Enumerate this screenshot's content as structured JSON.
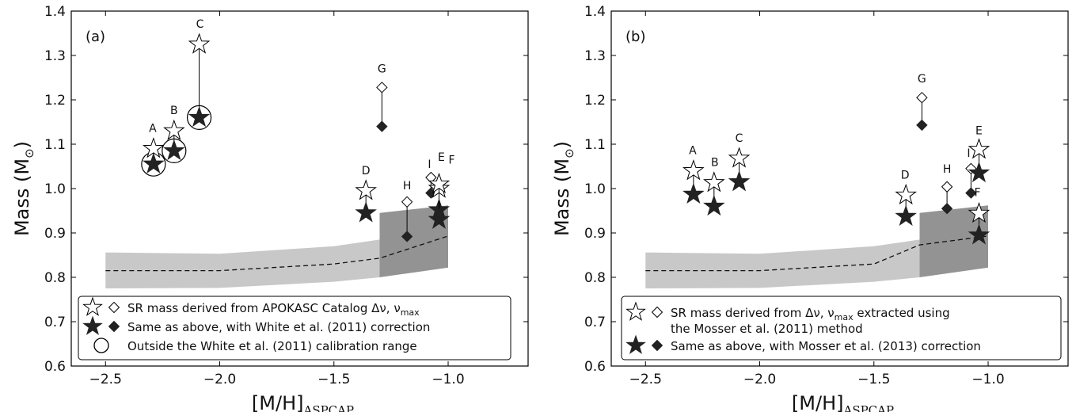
{
  "chart_data": [
    {
      "type": "scatter",
      "panel_label": "(a)",
      "xlabel": "[M/H]",
      "xlabel_sub": "ASPCAP",
      "ylabel": "Mass (M",
      "ylabel_sym": "⊙",
      "ylabel_end": ")",
      "xlim": [
        -2.65,
        -0.65
      ],
      "ylim": [
        0.6,
        1.4
      ],
      "xticks": [
        -2.5,
        -2.0,
        -1.5,
        -1.0
      ],
      "xtick_labels": [
        "−2.5",
        "−2.0",
        "−1.5",
        "−1.0"
      ],
      "yticks": [
        0.6,
        0.7,
        0.8,
        0.9,
        1.0,
        1.1,
        1.2,
        1.3,
        1.4
      ],
      "ytick_labels": [
        "0.6",
        "0.7",
        "0.8",
        "0.9",
        "1.0",
        "1.1",
        "1.2",
        "1.3",
        "1.4"
      ],
      "band_light": {
        "x": [
          -2.5,
          -2.0,
          -1.5,
          -1.3
        ],
        "upper": [
          0.856,
          0.853,
          0.87,
          0.885
        ],
        "lower": [
          0.775,
          0.776,
          0.79,
          0.8
        ]
      },
      "band_dark": {
        "x": [
          -1.3,
          -1.0
        ],
        "upper": [
          0.945,
          0.962
        ],
        "lower": [
          0.8,
          0.822
        ]
      },
      "median_line": {
        "x": [
          -2.5,
          -2.0,
          -1.5,
          -1.3,
          -1.0
        ],
        "y": [
          0.815,
          0.815,
          0.83,
          0.843,
          0.893
        ]
      },
      "stars": [
        {
          "id": "A",
          "metallicity": -2.29,
          "mass_open": 1.09,
          "mass_filled": 1.055,
          "circled": true
        },
        {
          "id": "B",
          "metallicity": -2.2,
          "mass_open": 1.13,
          "mass_filled": 1.085,
          "circled": true
        },
        {
          "id": "C",
          "metallicity": -2.09,
          "mass_open": 1.325,
          "mass_filled": 1.16,
          "circled": true
        },
        {
          "id": "D",
          "metallicity": -1.36,
          "mass_open": 0.995,
          "mass_filled": 0.945,
          "circled": false
        },
        {
          "id": "E",
          "metallicity": -1.04,
          "mass_open": 1.0,
          "mass_filled": 0.952,
          "circled": false
        },
        {
          "id": "F",
          "metallicity": -1.04,
          "mass_open": 1.01,
          "mass_filled": 0.93,
          "circled": false
        }
      ],
      "diamonds": [
        {
          "id": "G",
          "metallicity": -1.29,
          "mass_open": 1.228,
          "mass_filled": 1.14
        },
        {
          "id": "H",
          "metallicity": -1.18,
          "mass_open": 0.97,
          "mass_filled": 0.892
        },
        {
          "id": "I",
          "metallicity": -1.075,
          "mass_open": 1.025,
          "mass_filled": 0.99
        }
      ],
      "legend": [
        {
          "symbols": [
            "open-star",
            "open-diamond"
          ],
          "text": "SR mass derived from APOKASC Catalog Δν, ν",
          "sub": "max"
        },
        {
          "symbols": [
            "filled-star",
            "filled-diamond"
          ],
          "text": "Same as above, with White et al. (2011) correction"
        },
        {
          "symbols": [
            "open-circle"
          ],
          "text": "Outside the White et al. (2011) calibration range"
        }
      ],
      "colors": {
        "band_light": "#c8c8c8",
        "band_dark": "#939393",
        "marker": "#222222"
      }
    },
    {
      "type": "scatter",
      "panel_label": "(b)",
      "xlabel": "[M/H]",
      "xlabel_sub": "ASPCAP",
      "ylabel": "Mass (M",
      "ylabel_sym": "⊙",
      "ylabel_end": ")",
      "xlim": [
        -2.65,
        -0.65
      ],
      "ylim": [
        0.6,
        1.4
      ],
      "xticks": [
        -2.5,
        -2.0,
        -1.5,
        -1.0
      ],
      "xtick_labels": [
        "−2.5",
        "−2.0",
        "−1.5",
        "−1.0"
      ],
      "yticks": [
        0.6,
        0.7,
        0.8,
        0.9,
        1.0,
        1.1,
        1.2,
        1.3,
        1.4
      ],
      "ytick_labels": [
        "0.6",
        "0.7",
        "0.8",
        "0.9",
        "1.0",
        "1.1",
        "1.2",
        "1.3",
        "1.4"
      ],
      "band_light": {
        "x": [
          -2.5,
          -2.0,
          -1.5,
          -1.3
        ],
        "upper": [
          0.856,
          0.853,
          0.87,
          0.885
        ],
        "lower": [
          0.775,
          0.776,
          0.79,
          0.8
        ]
      },
      "band_dark": {
        "x": [
          -1.3,
          -1.0
        ],
        "upper": [
          0.945,
          0.962
        ],
        "lower": [
          0.8,
          0.822
        ]
      },
      "median_line": {
        "x": [
          -2.5,
          -2.0,
          -1.5,
          -1.3,
          -1.0
        ],
        "y": [
          0.815,
          0.815,
          0.83,
          0.873,
          0.893
        ]
      },
      "stars": [
        {
          "id": "A",
          "metallicity": -2.29,
          "mass_open": 1.04,
          "mass_filled": 0.987
        },
        {
          "id": "B",
          "metallicity": -2.2,
          "mass_open": 1.013,
          "mass_filled": 0.96
        },
        {
          "id": "C",
          "metallicity": -2.09,
          "mass_open": 1.068,
          "mass_filled": 1.015
        },
        {
          "id": "D",
          "metallicity": -1.36,
          "mass_open": 0.985,
          "mass_filled": 0.937
        },
        {
          "id": "E",
          "metallicity": -1.04,
          "mass_open": 1.088,
          "mass_filled": 1.035
        },
        {
          "id": "F",
          "metallicity": -1.04,
          "mass_open": 0.944,
          "mass_filled": 0.895
        }
      ],
      "diamonds": [
        {
          "id": "G",
          "metallicity": -1.29,
          "mass_open": 1.205,
          "mass_filled": 1.143
        },
        {
          "id": "H",
          "metallicity": -1.18,
          "mass_open": 1.004,
          "mass_filled": 0.955
        },
        {
          "id": "I",
          "metallicity": -1.075,
          "mass_open": 1.045,
          "mass_filled": 0.99
        }
      ],
      "legend": [
        {
          "symbols": [
            "open-star",
            "open-diamond"
          ],
          "text": "SR mass derived from Δν, ν",
          "sub": "max",
          "text2": " extracted using"
        },
        {
          "symbols": [],
          "text": "the Mosser et al. (2011) method"
        },
        {
          "symbols": [
            "filled-star",
            "filled-diamond"
          ],
          "text": "Same as above, with Mosser et al. (2013) correction"
        }
      ],
      "colors": {
        "band_light": "#c8c8c8",
        "band_dark": "#939393",
        "marker": "#222222"
      }
    }
  ]
}
